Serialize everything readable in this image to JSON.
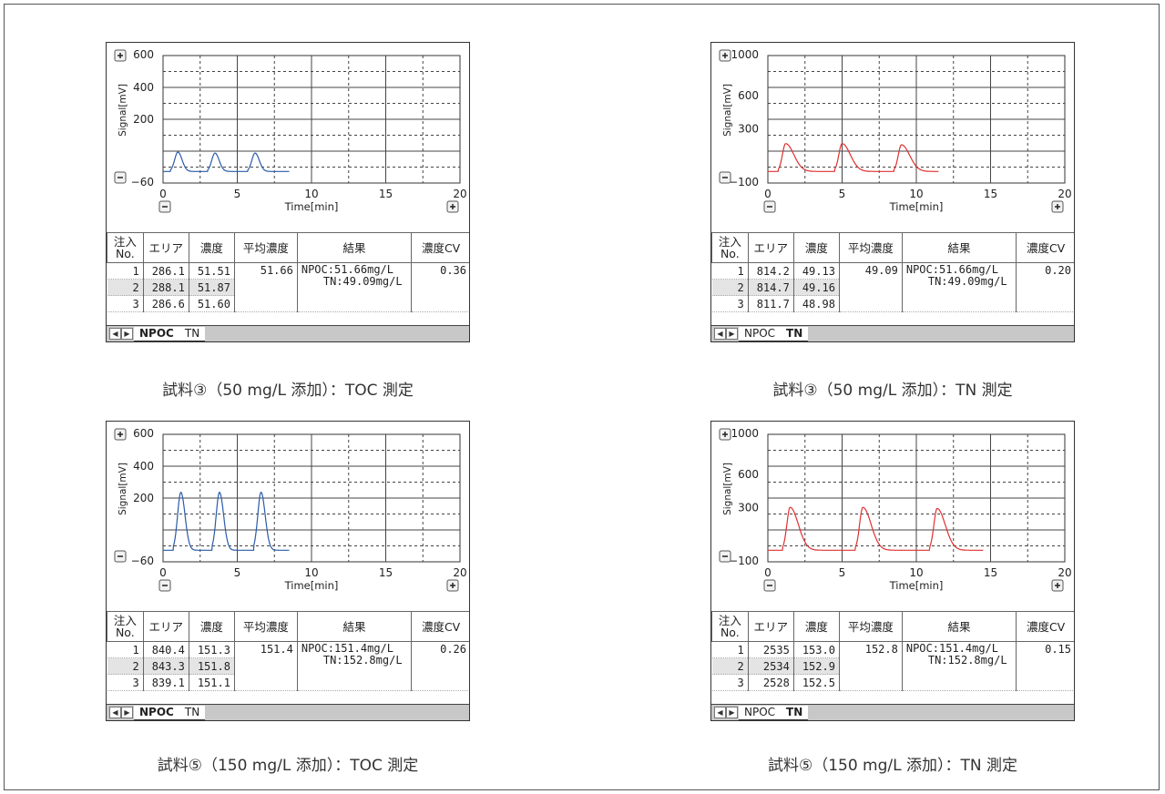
{
  "panels": [
    {
      "id": "p1",
      "caption": "試料③（50 mg/L 添加）：TOC 測定",
      "chart_data": {
        "type": "line",
        "ylabel": "Signal[mV]",
        "xlabel": "Time[min]",
        "xlim": [
          0,
          20
        ],
        "ylim": [
          -60,
          600
        ],
        "xticks": [
          "0",
          "5",
          "10",
          "15",
          "20"
        ],
        "yticks": [
          "600",
          "400",
          "200",
          "−60"
        ],
        "grid": true,
        "line_color": "#2a5aa8",
        "peaks": [
          {
            "t": 1.0,
            "height": 100
          },
          {
            "t": 3.5,
            "height": 95
          },
          {
            "t": 6.2,
            "height": 95
          }
        ],
        "trace_end": 8.5
      },
      "table": {
        "headers": [
          "注入\nNo.",
          "エリア",
          "濃度",
          "平均濃度",
          "結果",
          "濃度CV"
        ],
        "rows": [
          [
            "1",
            "286.1",
            "51.51"
          ],
          [
            "2",
            "288.1",
            "51.87"
          ],
          [
            "3",
            "286.6",
            "51.60"
          ]
        ],
        "avg": "51.66",
        "result_line1": "NPOC:51.66mg/L",
        "result_line2": "TN:49.09mg/L",
        "cv": "0.36"
      },
      "tabs": [
        "NPOC",
        "TN"
      ],
      "active_tab": "NPOC"
    },
    {
      "id": "p2",
      "caption": "試料③（50 mg/L 添加）：TN 測定",
      "chart_data": {
        "type": "line",
        "ylabel": "Signal[mV]",
        "xlabel": "Time[min]",
        "xlim": [
          0,
          20
        ],
        "ylim": [
          -100,
          1000
        ],
        "xticks": [
          "0",
          "5",
          "10",
          "15",
          "20"
        ],
        "yticks": [
          "1000",
          "600",
          "300",
          "−100"
        ],
        "grid": true,
        "line_color": "#e03030",
        "peaks": [
          {
            "t": 1.2,
            "height": 240
          },
          {
            "t": 5.0,
            "height": 240
          },
          {
            "t": 9.0,
            "height": 230
          }
        ],
        "trace_end": 11.5
      },
      "table": {
        "headers": [
          "注入\nNo.",
          "エリア",
          "濃度",
          "平均濃度",
          "結果",
          "濃度CV"
        ],
        "rows": [
          [
            "1",
            "814.2",
            "49.13"
          ],
          [
            "2",
            "814.7",
            "49.16"
          ],
          [
            "3",
            "811.7",
            "48.98"
          ]
        ],
        "avg": "49.09",
        "result_line1": "NPOC:51.66mg/L",
        "result_line2": "TN:49.09mg/L",
        "cv": "0.20"
      },
      "tabs": [
        "NPOC",
        "TN"
      ],
      "active_tab": "TN"
    },
    {
      "id": "p3",
      "caption": "試料⑤（150 mg/L 添加）：TOC 測定",
      "chart_data": {
        "type": "line",
        "ylabel": "Signal[mV]",
        "xlabel": "Time[min]",
        "xlim": [
          0,
          20
        ],
        "ylim": [
          -60,
          600
        ],
        "xticks": [
          "0",
          "5",
          "10",
          "15",
          "20"
        ],
        "yticks": [
          "600",
          "400",
          "200",
          "−60"
        ],
        "grid": true,
        "line_color": "#2a5aa8",
        "peaks": [
          {
            "t": 1.2,
            "height": 300
          },
          {
            "t": 3.8,
            "height": 300
          },
          {
            "t": 6.6,
            "height": 300
          }
        ],
        "trace_end": 8.5
      },
      "table": {
        "headers": [
          "注入\nNo.",
          "エリア",
          "濃度",
          "平均濃度",
          "結果",
          "濃度CV"
        ],
        "rows": [
          [
            "1",
            "840.4",
            "151.3"
          ],
          [
            "2",
            "843.3",
            "151.8"
          ],
          [
            "3",
            "839.1",
            "151.1"
          ]
        ],
        "avg": "151.4",
        "result_line1": "NPOC:151.4mg/L",
        "result_line2": "TN:152.8mg/L",
        "cv": "0.26"
      },
      "tabs": [
        "NPOC",
        "TN"
      ],
      "active_tab": "NPOC"
    },
    {
      "id": "p4",
      "caption": "試料⑤（150 mg/L 添加）：TN 測定",
      "chart_data": {
        "type": "line",
        "ylabel": "Signal[mV]",
        "xlabel": "Time[min]",
        "xlim": [
          0,
          20
        ],
        "ylim": [
          -100,
          1000
        ],
        "xticks": [
          "0",
          "5",
          "10",
          "15",
          "20"
        ],
        "yticks": [
          "1000",
          "600",
          "300",
          "−100"
        ],
        "grid": true,
        "line_color": "#e03030",
        "peaks": [
          {
            "t": 1.5,
            "height": 370
          },
          {
            "t": 6.4,
            "height": 370
          },
          {
            "t": 11.4,
            "height": 360
          }
        ],
        "trace_end": 14.5
      },
      "table": {
        "headers": [
          "注入\nNo.",
          "エリア",
          "濃度",
          "平均濃度",
          "結果",
          "濃度CV"
        ],
        "rows": [
          [
            "1",
            "2535",
            "153.0"
          ],
          [
            "2",
            "2534",
            "152.9"
          ],
          [
            "3",
            "2528",
            "152.5"
          ]
        ],
        "avg": "152.8",
        "result_line1": "NPOC:151.4mg/L",
        "result_line2": "TN:152.8mg/L",
        "cv": "0.15"
      },
      "tabs": [
        "NPOC",
        "TN"
      ],
      "active_tab": "TN"
    }
  ]
}
